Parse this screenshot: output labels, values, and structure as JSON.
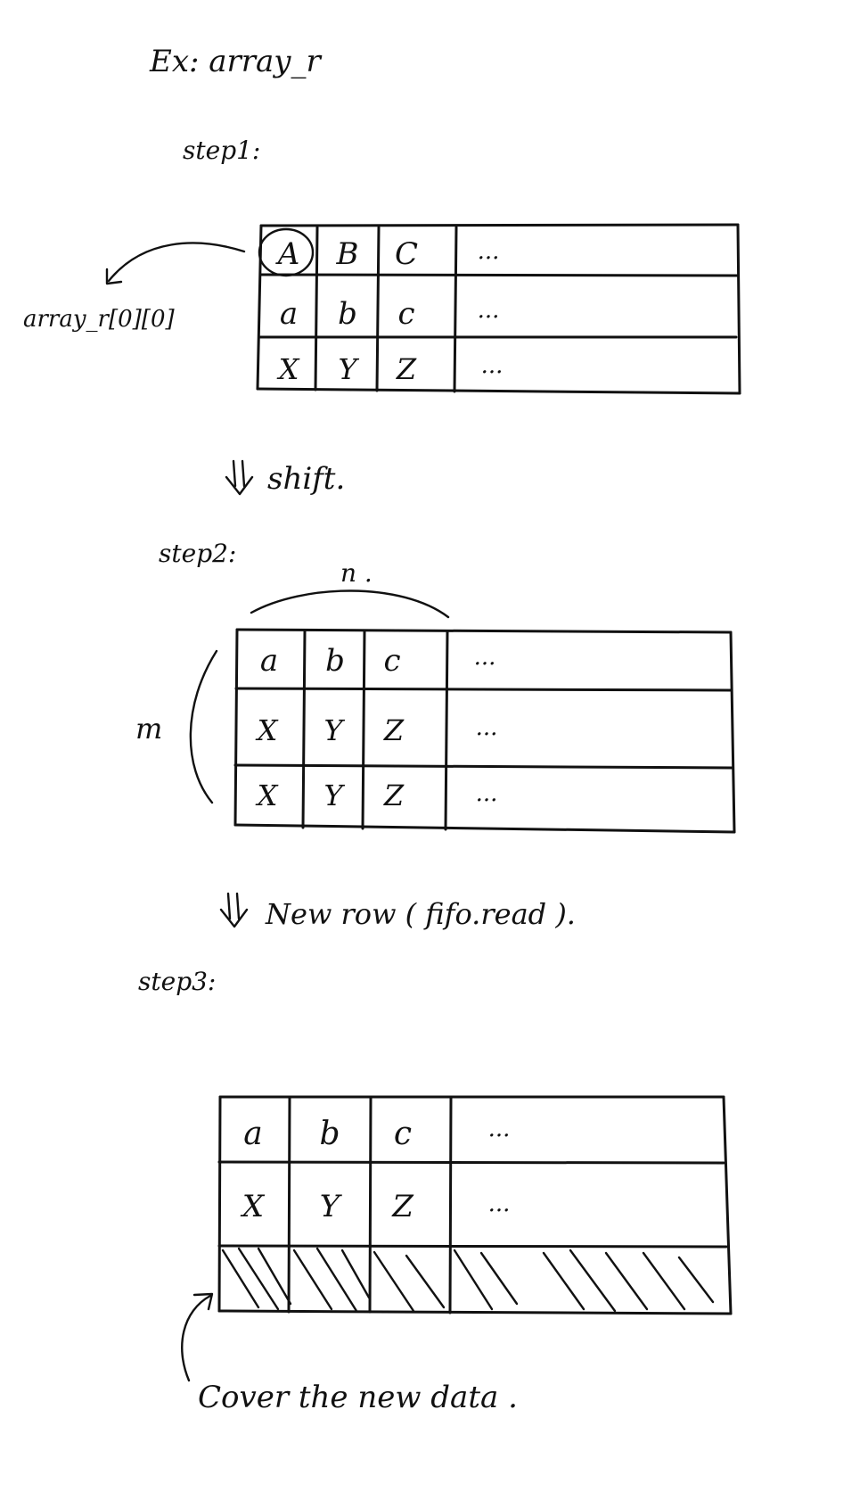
{
  "title": "Ex: array_r",
  "steps": [
    {
      "label": "step1:",
      "rows": [
        [
          "A",
          "B",
          "C",
          "..."
        ],
        [
          "a",
          "b",
          "c",
          "..."
        ],
        [
          "X",
          "Y",
          "Z",
          "..."
        ]
      ]
    },
    {
      "label": "step2:",
      "rows": [
        [
          "a",
          "b",
          "c",
          "..."
        ],
        [
          "X",
          "Y",
          "Z",
          "..."
        ],
        [
          "X",
          "Y",
          "Z",
          "..."
        ]
      ]
    },
    {
      "label": "step3:",
      "rows": [
        [
          "a",
          "b",
          "c",
          "..."
        ],
        [
          "X",
          "Y",
          "Z",
          "..."
        ]
      ]
    }
  ],
  "annotations": {
    "first_element": "array_r[0][0]",
    "shift": "shift.",
    "n_label": "n .",
    "m_label": "m",
    "new_row": "New row ( fifo.read ).",
    "cover": "Cover the new data ."
  },
  "colors": {
    "ink": "#111111",
    "paper": "#ffffff"
  }
}
